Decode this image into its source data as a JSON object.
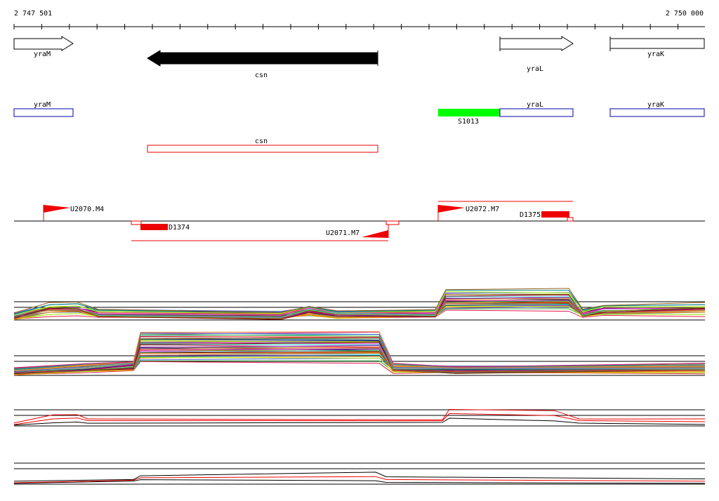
{
  "ruler": {
    "start": "2 747 501",
    "end": "2 750 000"
  },
  "genes": [
    "yraM",
    "csn",
    "yraL",
    "yraK"
  ],
  "annotations": {
    "boxes": [
      "yraM",
      "yraL",
      "yraK"
    ],
    "feature": "S1013",
    "csn_box": "csn"
  },
  "elements": [
    "U2070.M4",
    "U2072.M7",
    "D1375",
    "D1374",
    "U2071.M7"
  ]
}
